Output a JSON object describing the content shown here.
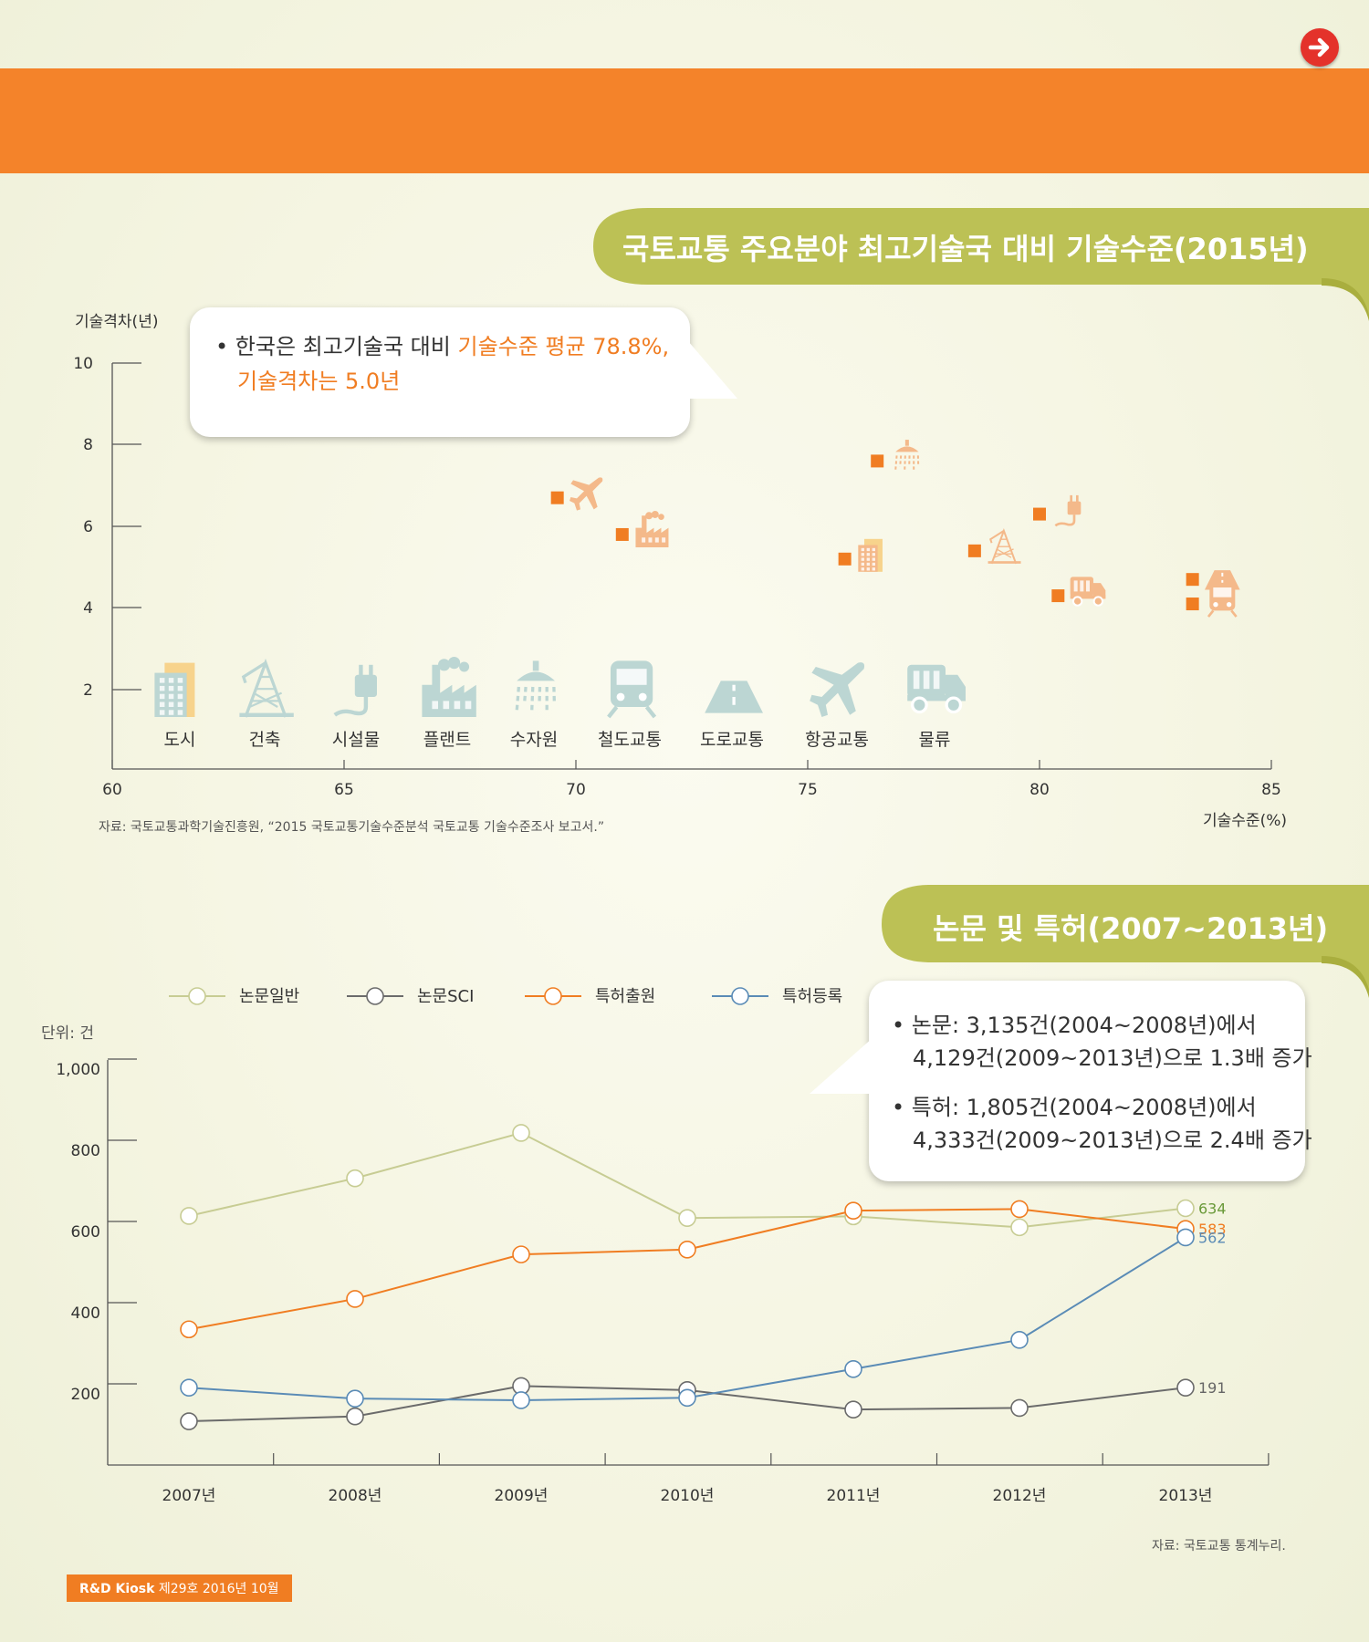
{
  "header": {
    "next_icon": "arrow-right-icon"
  },
  "chart1": {
    "title": "국토교통 주요분야 최고기술국 대비 기술수준(2015년)",
    "callout_prefix": "• 한국은 최고기술국 대비 ",
    "callout_highlight1": "기술수준 평균 78.8%,",
    "callout_highlight2": "기술격차는 5.0년",
    "source": "자료: 국토교통과학기술진흥원, “2015 국토교통기술수준분석 국토교통 기술수준조사 보고서.”"
  },
  "chart2": {
    "title": "논문 및 특허(2007~2013년)",
    "unit": "단위: 건",
    "callout": {
      "line1": "• 논문: 3,135건(2004~2008년)에서",
      "line2": "4,129건(2009~2013년)으로 1.3배 증가",
      "line3": "• 특허: 1,805건(2004~2008년)에서",
      "line4": "4,333건(2009~2013년)으로 2.4배 증가"
    },
    "source": "자료: 국토교통 통계누리."
  },
  "footer": {
    "brand": "R&D Kiosk",
    "issue": " 제29호 2016년 10월"
  },
  "colors": {
    "orange": "#f07d22",
    "olive": "#bcc155",
    "green_line": "#c7cc93",
    "gray_line": "#6b6b6b",
    "blue_line": "#5a8bb6"
  },
  "chart_data": [
    {
      "type": "scatter",
      "ylabel": "기술격차(년)",
      "xlabel": "기술수준(%)",
      "xlim": [
        60,
        85
      ],
      "xticks": [
        60,
        65,
        70,
        75,
        80,
        85
      ],
      "yticks": [
        2,
        4,
        6,
        8,
        10
      ],
      "points": [
        {
          "name": "항공교통",
          "icon": "airplane-icon",
          "x": 69.6,
          "y": 6.7
        },
        {
          "name": "플랜트",
          "icon": "factory-icon",
          "x": 71.0,
          "y": 5.8
        },
        {
          "name": "수자원",
          "icon": "shower-icon",
          "x": 76.5,
          "y": 7.6
        },
        {
          "name": "도시",
          "icon": "building-icon",
          "x": 75.8,
          "y": 5.2
        },
        {
          "name": "건축",
          "icon": "crane-icon",
          "x": 78.6,
          "y": 5.4
        },
        {
          "name": "시설물",
          "icon": "plug-icon",
          "x": 80.0,
          "y": 6.3
        },
        {
          "name": "물류",
          "icon": "truck-icon",
          "x": 80.4,
          "y": 4.3
        },
        {
          "name": "도로교통",
          "icon": "road-icon",
          "x": 83.3,
          "y": 4.7
        },
        {
          "name": "철도교통",
          "icon": "train-icon",
          "x": 83.3,
          "y": 4.1
        }
      ],
      "legend_icons": [
        {
          "label": "도시",
          "icon": "building-icon"
        },
        {
          "label": "건축",
          "icon": "crane-icon"
        },
        {
          "label": "시설물",
          "icon": "plug-icon"
        },
        {
          "label": "플랜트",
          "icon": "factory-icon"
        },
        {
          "label": "수자원",
          "icon": "shower-icon"
        },
        {
          "label": "철도교통",
          "icon": "train-icon"
        },
        {
          "label": "도로교통",
          "icon": "road-icon"
        },
        {
          "label": "항공교통",
          "icon": "airplane-icon"
        },
        {
          "label": "물류",
          "icon": "truck-icon"
        }
      ]
    },
    {
      "type": "line",
      "x": [
        "2007년",
        "2008년",
        "2009년",
        "2010년",
        "2011년",
        "2012년",
        "2013년"
      ],
      "yticks": [
        "200",
        "400",
        "600",
        "800",
        "1,000"
      ],
      "ylim": [
        0,
        1000
      ],
      "series": [
        {
          "name": "논문일반",
          "color": "#c7cc93",
          "values": [
            615,
            708,
            820,
            610,
            614,
            587,
            634
          ],
          "end_label": "634",
          "end_color": "#6a9a3a"
        },
        {
          "name": "논문SCI",
          "color": "#6b6b6b",
          "values": [
            108,
            120,
            195,
            185,
            137,
            141,
            191
          ],
          "end_label": "191",
          "end_color": "#666666"
        },
        {
          "name": "특허출원",
          "color": "#f07d22",
          "values": [
            335,
            410,
            520,
            532,
            628,
            632,
            583
          ],
          "end_label": "583",
          "end_color": "#f07d22"
        },
        {
          "name": "특허등록",
          "color": "#5a8bb6",
          "values": [
            191,
            164,
            160,
            166,
            237,
            309,
            562
          ],
          "end_label": "562",
          "end_color": "#5a8bb6"
        }
      ]
    }
  ]
}
